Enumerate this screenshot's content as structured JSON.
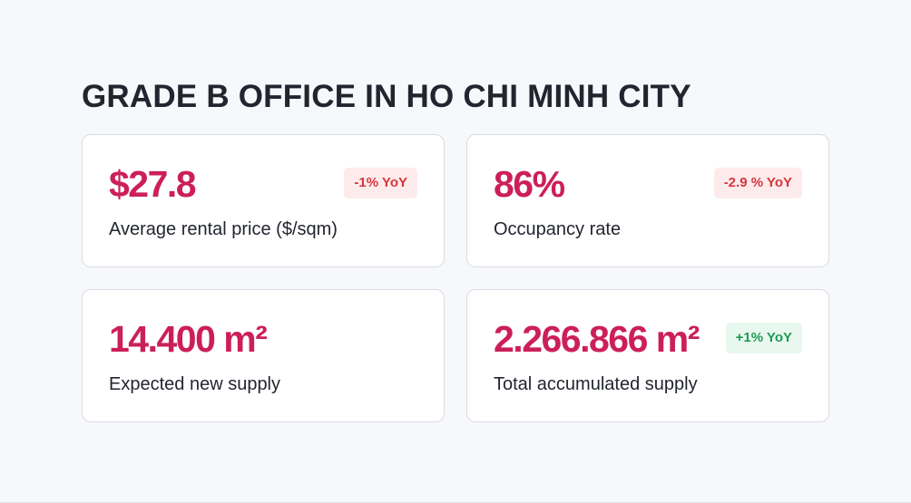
{
  "title": "GRADE B OFFICE IN HO CHI MINH CITY",
  "colors": {
    "accent": "#cc1f5a",
    "negative": "#d6353d",
    "negative_bg": "#fdebec",
    "positive": "#1e9a54",
    "positive_bg": "#e9f8ef"
  },
  "cards": [
    {
      "value": "$27.8",
      "label": "Average rental price ($/sqm)",
      "badge": "-1% YoY",
      "badge_trend": "down"
    },
    {
      "value": "86%",
      "label": "Occupancy rate",
      "badge": "-2.9 % YoY",
      "badge_trend": "down"
    },
    {
      "value": "14.400 m²",
      "label": "Expected new supply",
      "badge": "",
      "badge_trend": ""
    },
    {
      "value": "2.266.866 m²",
      "label": "Total accumulated supply",
      "badge": "+1% YoY",
      "badge_trend": "up"
    }
  ]
}
